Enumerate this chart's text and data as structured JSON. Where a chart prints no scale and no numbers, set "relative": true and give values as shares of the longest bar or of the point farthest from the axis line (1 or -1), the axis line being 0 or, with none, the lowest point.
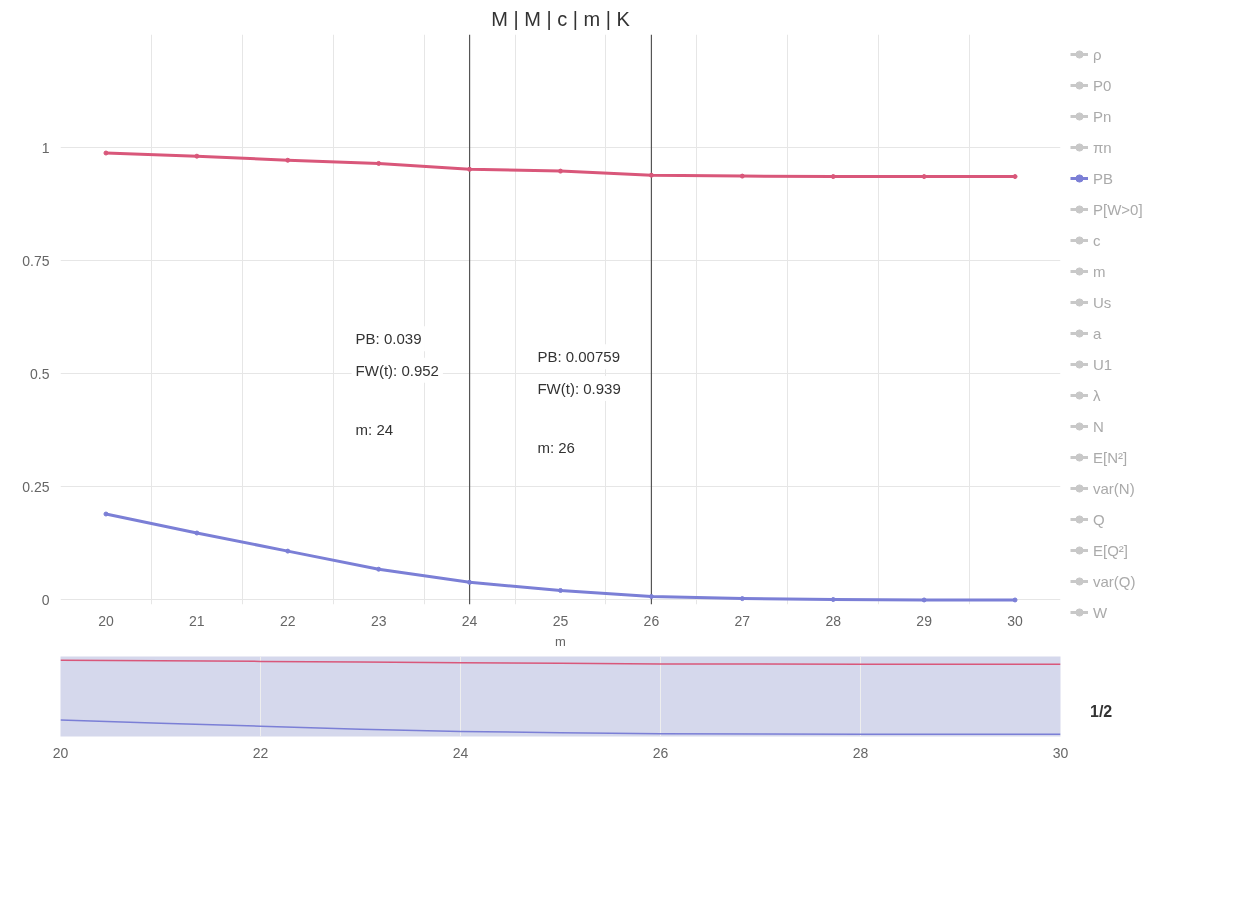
{
  "chart_data": [
    {
      "type": "line",
      "title": "M | M | c | m | K",
      "xlabel": "m",
      "x": [
        20,
        21,
        22,
        23,
        24,
        25,
        26,
        27,
        28,
        29,
        30
      ],
      "xlim": [
        19.5,
        30.5
      ],
      "xticks": [
        20,
        21,
        22,
        23,
        24,
        25,
        26,
        27,
        28,
        29,
        30
      ],
      "ylim": [
        -0.01,
        1.25
      ],
      "yticks": [
        0,
        0.25,
        0.5,
        0.75,
        1
      ],
      "grid": true,
      "legend": "right",
      "marker": "circle",
      "line_style": "solid",
      "series": [
        {
          "name": "ρ",
          "color": "#c8c8c8",
          "values": [
            null,
            null,
            null,
            null,
            null,
            null,
            null,
            null,
            null,
            null,
            null
          ]
        },
        {
          "name": "P0",
          "color": "#c8c8c8",
          "values": [
            null,
            null,
            null,
            null,
            null,
            null,
            null,
            null,
            null,
            null,
            null
          ]
        },
        {
          "name": "Pn",
          "color": "#c8c8c8",
          "values": [
            null,
            null,
            null,
            null,
            null,
            null,
            null,
            null,
            null,
            null,
            null
          ]
        },
        {
          "name": "πn",
          "color": "#c8c8c8",
          "values": [
            null,
            null,
            null,
            null,
            null,
            null,
            null,
            null,
            null,
            null,
            null
          ]
        },
        {
          "name": "PB",
          "color": "#7b7fd6",
          "values": [
            0.19,
            0.148,
            0.108,
            0.068,
            0.039,
            0.021,
            0.00759,
            0.003,
            0.001,
            0,
            0
          ]
        },
        {
          "name": "P[W>0]",
          "color": "#c8c8c8",
          "values": [
            null,
            null,
            null,
            null,
            null,
            null,
            null,
            null,
            null,
            null,
            null
          ]
        },
        {
          "name": "c",
          "color": "#c8c8c8",
          "values": [
            null,
            null,
            null,
            null,
            null,
            null,
            null,
            null,
            null,
            null,
            null
          ]
        },
        {
          "name": "m",
          "color": "#c8c8c8",
          "values": [
            null,
            null,
            null,
            null,
            null,
            null,
            null,
            null,
            null,
            null,
            null
          ]
        },
        {
          "name": "Us",
          "color": "#c8c8c8",
          "values": [
            null,
            null,
            null,
            null,
            null,
            null,
            null,
            null,
            null,
            null,
            null
          ]
        },
        {
          "name": "a",
          "color": "#c8c8c8",
          "values": [
            null,
            null,
            null,
            null,
            null,
            null,
            null,
            null,
            null,
            null,
            null
          ]
        },
        {
          "name": "U1",
          "color": "#c8c8c8",
          "values": [
            null,
            null,
            null,
            null,
            null,
            null,
            null,
            null,
            null,
            null,
            null
          ]
        },
        {
          "name": "λ",
          "color": "#c8c8c8",
          "values": [
            null,
            null,
            null,
            null,
            null,
            null,
            null,
            null,
            null,
            null,
            null
          ]
        },
        {
          "name": "N",
          "color": "#c8c8c8",
          "values": [
            null,
            null,
            null,
            null,
            null,
            null,
            null,
            null,
            null,
            null,
            null
          ]
        },
        {
          "name": "E[N²]",
          "color": "#c8c8c8",
          "values": [
            null,
            null,
            null,
            null,
            null,
            null,
            null,
            null,
            null,
            null,
            null
          ]
        },
        {
          "name": "var(N)",
          "color": "#c8c8c8",
          "values": [
            null,
            null,
            null,
            null,
            null,
            null,
            null,
            null,
            null,
            null,
            null
          ]
        },
        {
          "name": "Q",
          "color": "#c8c8c8",
          "values": [
            null,
            null,
            null,
            null,
            null,
            null,
            null,
            null,
            null,
            null,
            null
          ]
        },
        {
          "name": "E[Q²]",
          "color": "#c8c8c8",
          "values": [
            null,
            null,
            null,
            null,
            null,
            null,
            null,
            null,
            null,
            null,
            null
          ]
        },
        {
          "name": "var(Q)",
          "color": "#c8c8c8",
          "values": [
            null,
            null,
            null,
            null,
            null,
            null,
            null,
            null,
            null,
            null,
            null
          ]
        },
        {
          "name": "W",
          "color": "#c8c8c8",
          "values": [
            null,
            null,
            null,
            null,
            null,
            null,
            null,
            null,
            null,
            null,
            null
          ]
        },
        {
          "color": "#d9577a",
          "values": [
            0.988,
            0.981,
            0.972,
            0.965,
            0.952,
            0.948,
            0.939,
            0.937,
            0.936,
            0.936,
            0.936
          ]
        }
      ],
      "ref_lines": [
        {
          "axis": "x",
          "value": 24,
          "color": "#555555"
        },
        {
          "axis": "x",
          "value": 26,
          "color": "#555555"
        }
      ],
      "annotations": [
        "PB: 0.039",
        "FW(t): 0.952",
        "m: 24",
        "PB: 0.00759",
        "FW(t): 0.939",
        "m: 26",
        "1/2"
      ]
    },
    {
      "type": "line",
      "relative": true,
      "x": [
        20,
        21,
        22,
        23,
        24,
        25,
        26,
        27,
        28,
        29,
        30
      ],
      "xlim": [
        20,
        30
      ],
      "xticks": [
        20,
        22,
        24,
        26,
        28,
        30
      ],
      "grid": "x",
      "series": [
        {
          "color": "#7b7fd6",
          "values": [
            0.192,
            0.15,
            0.109,
            0.069,
            0.039,
            0.021,
            0.008,
            0.003,
            0.001,
            0,
            0
          ]
        },
        {
          "color": "#d9577a",
          "values": [
            1,
            0.993,
            0.984,
            0.977,
            0.964,
            0.96,
            0.95,
            0.948,
            0.947,
            0.947,
            0.947
          ]
        }
      ]
    }
  ]
}
